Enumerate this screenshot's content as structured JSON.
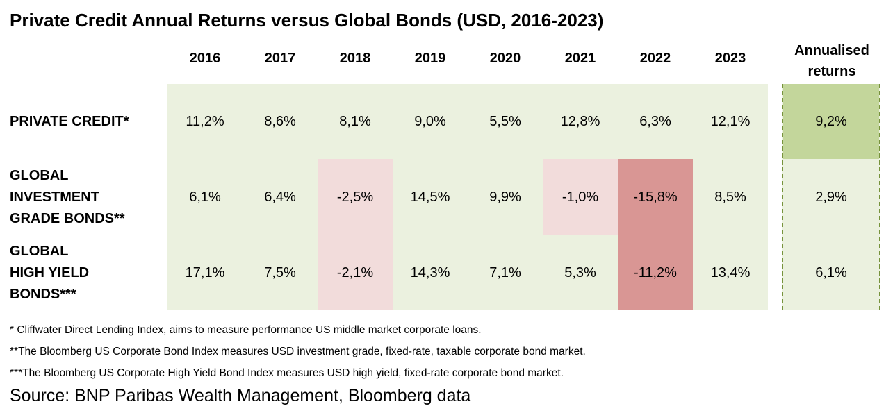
{
  "title": "Private Credit Annual Returns versus Global Bonds (USD, 2016-2023)",
  "chart_data": {
    "type": "table",
    "columns": [
      "2016",
      "2017",
      "2018",
      "2019",
      "2020",
      "2021",
      "2022",
      "2023"
    ],
    "annual_header": "Annualised returns",
    "rows": [
      {
        "label": "PRIVATE CREDIT*",
        "values": [
          "11,2%",
          "8,6%",
          "8,1%",
          "9,0%",
          "5,5%",
          "12,8%",
          "6,3%",
          "12,1%"
        ],
        "annualised": "9,2%"
      },
      {
        "label": "GLOBAL\nINVESTMENT\nGRADE BONDS**",
        "values": [
          "6,1%",
          "6,4%",
          "-2,5%",
          "14,5%",
          "9,9%",
          "-1,0%",
          "-15,8%",
          "8,5%"
        ],
        "annualised": "2,9%"
      },
      {
        "label": "GLOBAL\nHIGH YIELD\nBONDS***",
        "values": [
          "17,1%",
          "7,5%",
          "-2,1%",
          "14,3%",
          "7,1%",
          "5,3%",
          "-11,2%",
          "13,4%"
        ],
        "annualised": "6,1%"
      }
    ],
    "colors": {
      "panel": "#ebf1df",
      "annual_highlight": "#c3d69b",
      "light_negative": "#f2dcdb",
      "strong_negative": "#d99694",
      "dashed_border": "#77933c"
    }
  },
  "footnotes": [
    "* Cliffwater Direct Lending Index, aims to measure performance US middle market corporate loans.",
    "**The Bloomberg US Corporate Bond Index measures USD investment grade, fixed-rate, taxable corporate bond market.",
    "***The Bloomberg US Corporate High Yield Bond Index measures USD high yield, fixed-rate corporate bond market."
  ],
  "source": "Source: BNP Paribas Wealth Management, Bloomberg data"
}
